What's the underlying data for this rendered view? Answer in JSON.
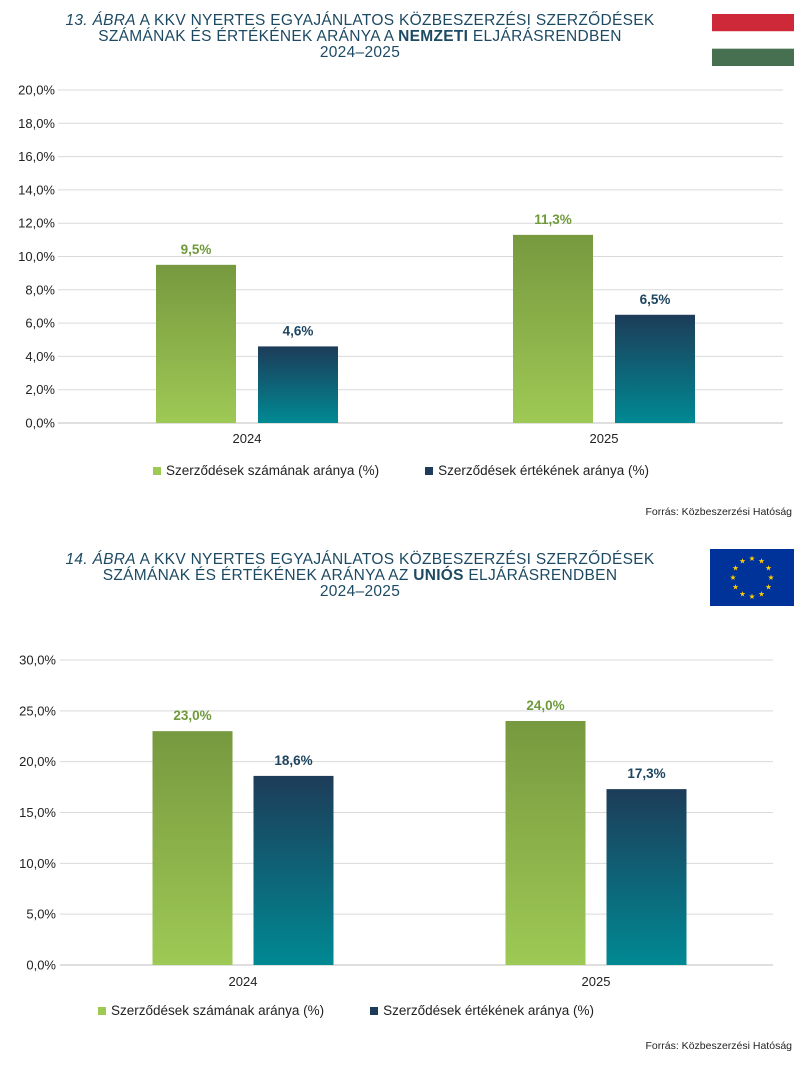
{
  "charts": [
    {
      "title_prefix": "13. ÁBRA",
      "title_line1_rest": " A KKV NYERTES EGYAJÁNLATOS KÖZBESZERZÉSI SZERZŐDÉSEK",
      "title_line2_a": "SZÁMÁNAK ÉS ÉRTÉKÉNEK ARÁNYA A ",
      "title_line2_bold": "NEMZETI",
      "title_line2_b": "  ELJÁRÁSRENDBEN",
      "title_line3": "2024–2025",
      "flag_icon": "hungarian-flag-icon",
      "source": "Forrás: Közbeszerzési  Hatóság",
      "legend": [
        "Szerződések számának aránya (%)",
        "Szerződések értékének aránya (%)"
      ]
    },
    {
      "title_prefix": "14. ÁBRA",
      "title_line1_rest": " A KKV NYERTES EGYAJÁNLATOS KÖZBESZERZÉSI SZERZŐDÉSEK",
      "title_line2_a": "SZÁMÁNAK ÉS ÉRTÉKÉNEK ARÁNYA AZ ",
      "title_line2_bold": "UNIÓS",
      "title_line2_b": "  ELJÁRÁSRENDBEN",
      "title_line3": "2024–2025",
      "flag_icon": "eu-flag-icon",
      "source": "Forrás: Közbeszerzési  Hatóság",
      "legend": [
        "Szerződések számának aránya (%)",
        "Szerződések értékének aránya (%)"
      ]
    }
  ],
  "colors": {
    "green_top": "#77993f",
    "green_bottom": "#9ec955",
    "teal_top": "#1d3c59",
    "teal_bottom": "#008993",
    "green_label": "#6f9a3a",
    "teal_label": "#1d4560",
    "grid": "#d9d9d9",
    "axis": "#bfbfbf",
    "hu_red": "#ce2939",
    "hu_green": "#477050",
    "eu_blue": "#003399",
    "eu_star": "#ffcc00"
  },
  "chart_data": [
    {
      "type": "bar",
      "categories": [
        "2024",
        "2025"
      ],
      "series": [
        {
          "name": "Szerződések számának aránya (%)",
          "values": [
            9.5,
            11.3
          ],
          "labels": [
            "9,5%",
            "11,3%"
          ]
        },
        {
          "name": "Szerződések értékének aránya (%)",
          "values": [
            4.6,
            6.5
          ],
          "labels": [
            "4,6%",
            "6,5%"
          ]
        }
      ],
      "ylim": [
        0,
        20
      ],
      "yticks": [
        0,
        2,
        4,
        6,
        8,
        10,
        12,
        14,
        16,
        18,
        20
      ],
      "ytick_labels": [
        "0,0%",
        "2,0%",
        "4,0%",
        "6,0%",
        "8,0%",
        "10,0%",
        "12,0%",
        "14,0%",
        "16,0%",
        "18,0%",
        "20,0%"
      ],
      "grid": true,
      "legend": "bottom"
    },
    {
      "type": "bar",
      "categories": [
        "2024",
        "2025"
      ],
      "series": [
        {
          "name": "Szerződések számának aránya (%)",
          "values": [
            23.0,
            24.0
          ],
          "labels": [
            "23,0%",
            "24,0%"
          ]
        },
        {
          "name": "Szerződések értékének aránya (%)",
          "values": [
            18.6,
            17.3
          ],
          "labels": [
            "18,6%",
            "17,3%"
          ]
        }
      ],
      "ylim": [
        0,
        30
      ],
      "yticks": [
        0,
        5,
        10,
        15,
        20,
        25,
        30
      ],
      "ytick_labels": [
        "0,0%",
        "5,0%",
        "10,0%",
        "15,0%",
        "20,0%",
        "25,0%",
        "30,0%"
      ],
      "grid": true,
      "legend": "bottom"
    }
  ]
}
